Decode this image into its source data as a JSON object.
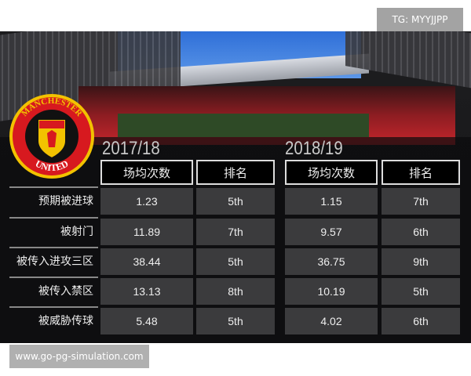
{
  "watermark_top": "TG: MYYJJPP",
  "watermark_bottom": "www.go-pg-simulation.com",
  "crest": {
    "text_top": "MANCHESTER",
    "text_bottom": "UNITED"
  },
  "seasons": [
    "2017/18",
    "2018/19"
  ],
  "headers": [
    "场均次数",
    "排名",
    "场均次数",
    "排名"
  ],
  "rows": [
    {
      "label": "预期被进球",
      "values": [
        "1.23",
        "5th",
        "1.15",
        "7th"
      ]
    },
    {
      "label": "被射门",
      "values": [
        "11.89",
        "7th",
        "9.57",
        "6th"
      ]
    },
    {
      "label": "被传入进攻三区",
      "values": [
        "38.44",
        "5th",
        "36.75",
        "9th"
      ]
    },
    {
      "label": "被传入禁区",
      "values": [
        "13.13",
        "8th",
        "10.19",
        "5th"
      ]
    },
    {
      "label": "被威胁传球",
      "values": [
        "5.48",
        "5th",
        "4.02",
        "6th"
      ]
    }
  ]
}
